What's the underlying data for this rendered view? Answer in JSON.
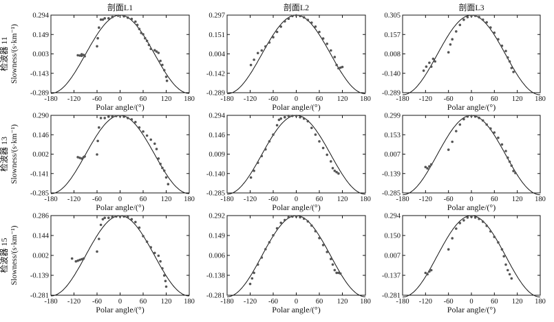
{
  "figure": {
    "column_titles": [
      "剖面L1",
      "剖面L2",
      "剖面L3"
    ],
    "row_labels": [
      "检波器 11",
      "检波器 13",
      "检波器 15"
    ],
    "ylabel": "Slowness/(s·km⁻¹)",
    "xlabel": "Polar angle/(°)"
  },
  "chart_data": [
    {
      "type": "scatter",
      "row": 0,
      "col": 0,
      "title": "剖面L1",
      "xlabel": "Polar angle/(°)",
      "ylabel": "Slowness/(s·km⁻¹)",
      "xlim": [
        -180,
        180
      ],
      "ylim": [
        -0.289,
        0.294
      ],
      "x_ticks": [
        "-180",
        "-120",
        "-60",
        "0",
        "60",
        "120",
        "180"
      ],
      "y_ticks": [
        "0.294",
        "0.149",
        "0.003",
        "-0.143",
        "-0.289"
      ],
      "curve_amplitude": 0.294,
      "points": [
        [
          -110,
          -0.008
        ],
        [
          -105,
          -0.01
        ],
        [
          -100,
          -0.012
        ],
        [
          -95,
          -0.005
        ],
        [
          -92,
          -0.015
        ],
        [
          -100,
          0.0
        ],
        [
          -60,
          0.06
        ],
        [
          -58,
          0.12
        ],
        [
          -55,
          0.2
        ],
        [
          -50,
          0.26
        ],
        [
          -45,
          0.26
        ],
        [
          -40,
          0.27
        ],
        [
          -30,
          0.27
        ],
        [
          -20,
          0.28
        ],
        [
          -5,
          0.29
        ],
        [
          10,
          0.285
        ],
        [
          20,
          0.275
        ],
        [
          30,
          0.265
        ],
        [
          40,
          0.245
        ],
        [
          45,
          0.22
        ],
        [
          50,
          0.19
        ],
        [
          55,
          0.16
        ],
        [
          60,
          0.15
        ],
        [
          65,
          0.12
        ],
        [
          70,
          0.1
        ],
        [
          75,
          0.07
        ],
        [
          80,
          0.04
        ],
        [
          90,
          0.03
        ],
        [
          95,
          0.02
        ],
        [
          100,
          0.01
        ],
        [
          105,
          -0.05
        ],
        [
          110,
          -0.08
        ],
        [
          115,
          -0.12
        ],
        [
          120,
          -0.17
        ],
        [
          122,
          -0.2
        ]
      ]
    },
    {
      "type": "scatter",
      "row": 0,
      "col": 1,
      "title": "剖面L2",
      "xlabel": "Polar angle/(°)",
      "ylabel": "Slowness/(s·km⁻¹)",
      "xlim": [
        -180,
        180
      ],
      "ylim": [
        -0.289,
        0.297
      ],
      "x_ticks": [
        "-180",
        "-120",
        "-60",
        "0",
        "60",
        "120",
        "180"
      ],
      "y_ticks": [
        "0.297",
        "0.151",
        "0.004",
        "-0.142",
        "-0.289"
      ],
      "curve_amplitude": 0.297,
      "points": [
        [
          -118,
          -0.08
        ],
        [
          -110,
          -0.04
        ],
        [
          -100,
          0.01
        ],
        [
          -90,
          0.03
        ],
        [
          -80,
          0.06
        ],
        [
          -70,
          0.09
        ],
        [
          -60,
          0.13
        ],
        [
          -50,
          0.17
        ],
        [
          -40,
          0.21
        ],
        [
          -30,
          0.25
        ],
        [
          -20,
          0.27
        ],
        [
          -10,
          0.29
        ],
        [
          0,
          0.295
        ],
        [
          10,
          0.29
        ],
        [
          20,
          0.28
        ],
        [
          30,
          0.26
        ],
        [
          40,
          0.24
        ],
        [
          50,
          0.21
        ],
        [
          60,
          0.17
        ],
        [
          70,
          0.12
        ],
        [
          80,
          0.08
        ],
        [
          90,
          0.03
        ],
        [
          100,
          -0.02
        ],
        [
          105,
          -0.08
        ],
        [
          110,
          -0.105
        ],
        [
          115,
          -0.1
        ],
        [
          120,
          -0.095
        ]
      ]
    },
    {
      "type": "scatter",
      "row": 0,
      "col": 2,
      "title": "剖面L3",
      "xlabel": "Polar angle/(°)",
      "ylabel": "Slowness/(s·km⁻¹)",
      "xlim": [
        -180,
        180
      ],
      "ylim": [
        -0.289,
        0.305
      ],
      "x_ticks": [
        "-180",
        "-120",
        "-60",
        "0",
        "60",
        "120",
        "180"
      ],
      "y_ticks": [
        "0.305",
        "0.157",
        "0.008",
        "-0.140",
        "-0.289"
      ],
      "curve_amplitude": 0.305,
      "points": [
        [
          -125,
          -0.12
        ],
        [
          -118,
          -0.09
        ],
        [
          -110,
          -0.06
        ],
        [
          -105,
          -0.09
        ],
        [
          -100,
          -0.03
        ],
        [
          -95,
          -0.05
        ],
        [
          -60,
          0.02
        ],
        [
          -55,
          0.08
        ],
        [
          -50,
          0.12
        ],
        [
          -40,
          0.18
        ],
        [
          -30,
          0.23
        ],
        [
          -20,
          0.27
        ],
        [
          -10,
          0.29
        ],
        [
          0,
          0.3
        ],
        [
          10,
          0.3
        ],
        [
          20,
          0.29
        ],
        [
          30,
          0.27
        ],
        [
          40,
          0.25
        ],
        [
          50,
          0.21
        ],
        [
          60,
          0.17
        ],
        [
          70,
          0.12
        ],
        [
          80,
          0.07
        ],
        [
          90,
          0.03
        ],
        [
          95,
          -0.02
        ],
        [
          100,
          -0.05
        ],
        [
          105,
          -0.1
        ],
        [
          110,
          -0.13
        ]
      ]
    },
    {
      "type": "scatter",
      "row": 1,
      "col": 0,
      "title": "",
      "xlabel": "Polar angle/(°)",
      "ylabel": "Slowness/(s·km⁻¹)",
      "xlim": [
        -180,
        180
      ],
      "ylim": [
        -0.285,
        0.29
      ],
      "x_ticks": [
        "-180",
        "-120",
        "-60",
        "0",
        "60",
        "120",
        "180"
      ],
      "y_ticks": [
        "0.290",
        "0.146",
        "0.002",
        "-0.141",
        "-0.285"
      ],
      "curve_amplitude": 0.29,
      "points": [
        [
          -110,
          -0.02
        ],
        [
          -105,
          -0.025
        ],
        [
          -100,
          -0.03
        ],
        [
          -95,
          -0.02
        ],
        [
          -92,
          -0.015
        ],
        [
          -60,
          0.0
        ],
        [
          -58,
          0.1
        ],
        [
          -55,
          0.2
        ],
        [
          -50,
          0.27
        ],
        [
          -40,
          0.27
        ],
        [
          -30,
          0.28
        ],
        [
          -20,
          0.28
        ],
        [
          -10,
          0.285
        ],
        [
          0,
          0.285
        ],
        [
          10,
          0.28
        ],
        [
          20,
          0.27
        ],
        [
          30,
          0.26
        ],
        [
          40,
          0.24
        ],
        [
          50,
          0.2
        ],
        [
          60,
          0.17
        ],
        [
          70,
          0.14
        ],
        [
          80,
          0.11
        ],
        [
          90,
          0.08
        ],
        [
          95,
          0.04
        ],
        [
          100,
          -0.03
        ],
        [
          105,
          -0.07
        ],
        [
          110,
          -0.1
        ],
        [
          115,
          -0.12
        ],
        [
          120,
          -0.17
        ],
        [
          125,
          -0.22
        ]
      ]
    },
    {
      "type": "scatter",
      "row": 1,
      "col": 1,
      "title": "",
      "xlabel": "Polar angle/(°)",
      "ylabel": "Slowness/(s·km⁻¹)",
      "xlim": [
        -180,
        180
      ],
      "ylim": [
        -0.285,
        0.294
      ],
      "x_ticks": [
        "-180",
        "-120",
        "-60",
        "0",
        "60",
        "120",
        "180"
      ],
      "y_ticks": [
        "0.294",
        "0.146",
        "0.009",
        "-0.140",
        "-0.285"
      ],
      "curve_amplitude": 0.294,
      "points": [
        [
          -118,
          -0.17
        ],
        [
          -110,
          -0.12
        ],
        [
          -100,
          -0.06
        ],
        [
          -90,
          -0.01
        ],
        [
          -80,
          0.04
        ],
        [
          -70,
          0.1
        ],
        [
          -60,
          0.15
        ],
        [
          -50,
          0.22
        ],
        [
          -45,
          0.26
        ],
        [
          -40,
          0.27
        ],
        [
          -30,
          0.28
        ],
        [
          -20,
          0.29
        ],
        [
          -10,
          0.29
        ],
        [
          0,
          0.29
        ],
        [
          10,
          0.28
        ],
        [
          20,
          0.27
        ],
        [
          30,
          0.25
        ],
        [
          40,
          0.2
        ],
        [
          50,
          0.15
        ],
        [
          60,
          0.1
        ],
        [
          70,
          0.05
        ],
        [
          80,
          0.0
        ],
        [
          90,
          -0.05
        ],
        [
          95,
          -0.1
        ],
        [
          100,
          -0.12
        ],
        [
          105,
          -0.13
        ],
        [
          110,
          -0.14
        ]
      ]
    },
    {
      "type": "scatter",
      "row": 1,
      "col": 2,
      "title": "",
      "xlabel": "Polar angle/(°)",
      "ylabel": "Slowness/(s·km⁻¹)",
      "xlim": [
        -180,
        180
      ],
      "ylim": [
        -0.285,
        0.299
      ],
      "x_ticks": [
        "-180",
        "-120",
        "-60",
        "0",
        "60",
        "120",
        "180"
      ],
      "y_ticks": [
        "0.299",
        "0.153",
        "0.007",
        "-0.139",
        "-0.285"
      ],
      "curve_amplitude": 0.299,
      "points": [
        [
          -120,
          -0.09
        ],
        [
          -115,
          -0.1
        ],
        [
          -110,
          -0.085
        ],
        [
          -105,
          -0.07
        ],
        [
          -60,
          0.04
        ],
        [
          -50,
          0.1
        ],
        [
          -40,
          0.18
        ],
        [
          -30,
          0.23
        ],
        [
          -20,
          0.27
        ],
        [
          -10,
          0.29
        ],
        [
          0,
          0.295
        ],
        [
          10,
          0.29
        ],
        [
          20,
          0.28
        ],
        [
          30,
          0.26
        ],
        [
          40,
          0.23
        ],
        [
          50,
          0.2
        ],
        [
          60,
          0.17
        ],
        [
          70,
          0.13
        ],
        [
          80,
          0.08
        ],
        [
          90,
          0.03
        ],
        [
          95,
          -0.02
        ],
        [
          100,
          -0.05
        ],
        [
          105,
          -0.08
        ],
        [
          110,
          -0.12
        ],
        [
          115,
          -0.135
        ]
      ]
    },
    {
      "type": "scatter",
      "row": 2,
      "col": 0,
      "title": "",
      "xlabel": "Polar angle/(°)",
      "ylabel": "Slowness/(s·km⁻¹)",
      "xlim": [
        -180,
        180
      ],
      "ylim": [
        -0.281,
        0.286
      ],
      "x_ticks": [
        "-180",
        "-120",
        "-60",
        "0",
        "60",
        "120",
        "180"
      ],
      "y_ticks": [
        "0.286",
        "0.144",
        "0.002",
        "-0.139",
        "-0.281"
      ],
      "curve_amplitude": 0.286,
      "points": [
        [
          -125,
          -0.02
        ],
        [
          -115,
          -0.04
        ],
        [
          -110,
          -0.035
        ],
        [
          -105,
          -0.03
        ],
        [
          -100,
          -0.025
        ],
        [
          -95,
          -0.02
        ],
        [
          -60,
          0.03
        ],
        [
          -55,
          0.12
        ],
        [
          -50,
          0.22
        ],
        [
          -45,
          0.26
        ],
        [
          -40,
          0.27
        ],
        [
          -30,
          0.27
        ],
        [
          -20,
          0.275
        ],
        [
          -10,
          0.28
        ],
        [
          0,
          0.28
        ],
        [
          10,
          0.28
        ],
        [
          20,
          0.275
        ],
        [
          30,
          0.26
        ],
        [
          40,
          0.24
        ],
        [
          50,
          0.2
        ],
        [
          60,
          0.14
        ],
        [
          70,
          0.1
        ],
        [
          80,
          0.06
        ],
        [
          90,
          0.02
        ],
        [
          100,
          0.0
        ],
        [
          105,
          -0.04
        ],
        [
          110,
          -0.09
        ],
        [
          115,
          -0.14
        ],
        [
          118,
          -0.18
        ],
        [
          120,
          -0.22
        ]
      ]
    },
    {
      "type": "scatter",
      "row": 2,
      "col": 1,
      "title": "",
      "xlabel": "Polar angle/(°)",
      "ylabel": "Slowness/(s·km⁻¹)",
      "xlim": [
        -180,
        180
      ],
      "ylim": [
        -0.281,
        0.292
      ],
      "x_ticks": [
        "-180",
        "-120",
        "-60",
        "0",
        "60",
        "120",
        "180"
      ],
      "y_ticks": [
        "0.292",
        "0.149",
        "0.006",
        "-0.138",
        "-0.281"
      ],
      "curve_amplitude": 0.292,
      "points": [
        [
          -120,
          -0.2
        ],
        [
          -115,
          -0.16
        ],
        [
          -110,
          -0.12
        ],
        [
          -100,
          -0.06
        ],
        [
          -90,
          -0.01
        ],
        [
          -80,
          0.05
        ],
        [
          -70,
          0.1
        ],
        [
          -60,
          0.15
        ],
        [
          -50,
          0.2
        ],
        [
          -40,
          0.24
        ],
        [
          -30,
          0.26
        ],
        [
          -20,
          0.28
        ],
        [
          -10,
          0.285
        ],
        [
          0,
          0.285
        ],
        [
          10,
          0.28
        ],
        [
          20,
          0.27
        ],
        [
          30,
          0.25
        ],
        [
          40,
          0.22
        ],
        [
          50,
          0.18
        ],
        [
          60,
          0.13
        ],
        [
          70,
          0.08
        ],
        [
          80,
          0.03
        ],
        [
          90,
          -0.02
        ],
        [
          95,
          -0.06
        ],
        [
          100,
          -0.1
        ],
        [
          105,
          -0.12
        ],
        [
          110,
          -0.12
        ],
        [
          115,
          -0.125
        ]
      ]
    },
    {
      "type": "scatter",
      "row": 2,
      "col": 2,
      "title": "",
      "xlabel": "Polar angle/(°)",
      "ylabel": "Slowness/(s·km⁻¹)",
      "xlim": [
        -180,
        180
      ],
      "ylim": [
        -0.281,
        0.294
      ],
      "x_ticks": [
        "-180",
        "-120",
        "-60",
        "0",
        "60",
        "120",
        "180"
      ],
      "y_ticks": [
        "0.294",
        "0.150",
        "0.007",
        "-0.137",
        "-0.281"
      ],
      "curve_amplitude": 0.294,
      "points": [
        [
          -120,
          -0.12
        ],
        [
          -115,
          -0.13
        ],
        [
          -110,
          -0.11
        ],
        [
          -105,
          -0.1
        ],
        [
          -60,
          0.05
        ],
        [
          -50,
          0.13
        ],
        [
          -40,
          0.2
        ],
        [
          -30,
          0.24
        ],
        [
          -20,
          0.26
        ],
        [
          -10,
          0.28
        ],
        [
          0,
          0.285
        ],
        [
          10,
          0.28
        ],
        [
          20,
          0.27
        ],
        [
          30,
          0.25
        ],
        [
          40,
          0.22
        ],
        [
          50,
          0.18
        ],
        [
          60,
          0.14
        ],
        [
          70,
          0.1
        ],
        [
          80,
          0.05
        ],
        [
          85,
          0.0
        ],
        [
          90,
          -0.06
        ],
        [
          95,
          -0.1
        ],
        [
          100,
          -0.13
        ],
        [
          105,
          -0.16
        ]
      ]
    }
  ]
}
